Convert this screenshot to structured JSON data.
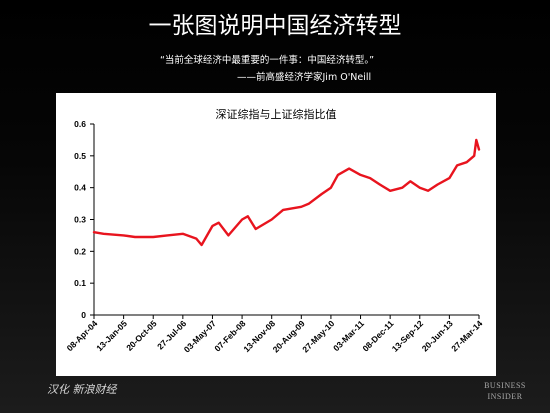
{
  "slide": {
    "title": "一张图说明中国经济转型",
    "quote": "“当前全球经济中最重要的一件事：中国经济转型。”",
    "attribution": "——前高盛经济学家Jim O'Neill",
    "credit": "汉化 新浪财经",
    "logo_line1": "BUSINESS",
    "logo_line2": "INSIDER"
  },
  "chart_data": {
    "type": "line",
    "title": "深证综指与上证综指比值",
    "xlabel": "",
    "ylabel": "",
    "ylim": [
      0,
      0.6
    ],
    "y_ticks": [
      0,
      0.1,
      0.2,
      0.3,
      0.4,
      0.5,
      0.6
    ],
    "y_tick_labels": [
      "0",
      "0.1",
      "0.2",
      "0.3",
      "0.4",
      "0.5",
      "0.6"
    ],
    "x_tick_labels": [
      "08-Apr-04",
      "13-Jan-05",
      "20-Oct-05",
      "27-Jul-06",
      "03-May-07",
      "07-Feb-08",
      "13-Nov-08",
      "20-Aug-09",
      "27-May-10",
      "03-Mar-11",
      "08-Dec-11",
      "13-Sep-12",
      "20-Jun-13",
      "27-Mar-14"
    ],
    "grid": false,
    "legend": "none",
    "line_color": "#e8141e",
    "series": [
      {
        "x": [
          "08-Apr-04",
          "08-Jul-04",
          "13-Jan-05",
          "01-May-05",
          "20-Oct-05",
          "01-Mar-06",
          "27-Jul-06",
          "01-Dec-06",
          "20-Jan-07",
          "03-May-07",
          "01-Jul-07",
          "01-Oct-07",
          "07-Feb-08",
          "01-Apr-08",
          "15-Jun-08",
          "13-Nov-08",
          "01-Mar-09",
          "20-Aug-09",
          "01-Nov-09",
          "01-Mar-10",
          "27-May-10",
          "01-Aug-10",
          "15-Nov-10",
          "03-Mar-11",
          "01-Jun-11",
          "01-Sep-11",
          "08-Dec-11",
          "01-Apr-12",
          "15-Jun-12",
          "13-Sep-12",
          "01-Dec-12",
          "01-Mar-13",
          "20-Jun-13",
          "01-Sep-13",
          "01-Dec-13",
          "10-Feb-14",
          "01-Mar-14",
          "27-Mar-14"
        ],
        "values": [
          0.26,
          0.255,
          0.25,
          0.245,
          0.245,
          0.25,
          0.255,
          0.24,
          0.22,
          0.28,
          0.29,
          0.25,
          0.3,
          0.31,
          0.27,
          0.3,
          0.33,
          0.34,
          0.35,
          0.38,
          0.4,
          0.44,
          0.46,
          0.44,
          0.43,
          0.41,
          0.39,
          0.4,
          0.42,
          0.4,
          0.39,
          0.41,
          0.43,
          0.47,
          0.48,
          0.5,
          0.55,
          0.52
        ]
      }
    ]
  }
}
